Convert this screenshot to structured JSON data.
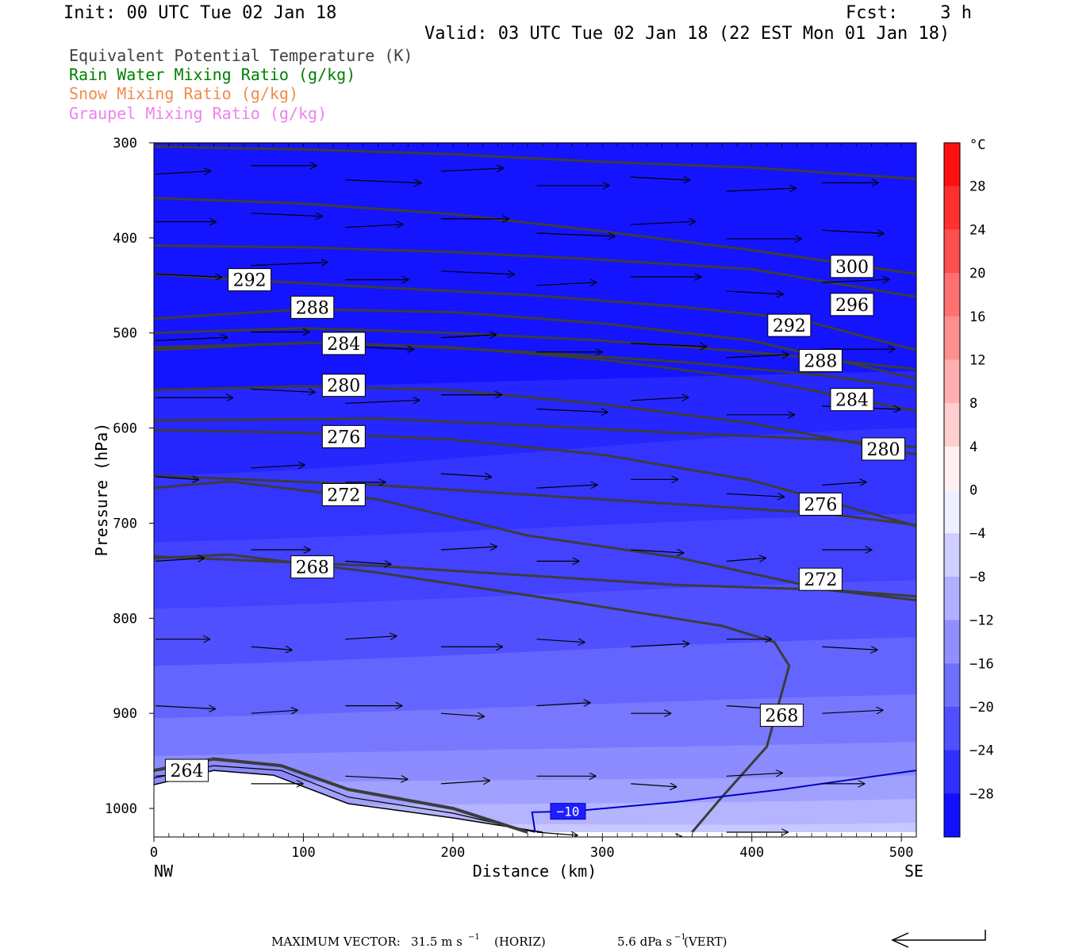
{
  "header": {
    "init": "Init: 00 UTC Tue 02 Jan 18",
    "fcst": "Fcst:    3 h",
    "valid": "Valid: 03 UTC Tue 02 Jan 18 (22 EST Mon 01 Jan 18)"
  },
  "legend": [
    {
      "label": "Equivalent Potential Temperature (K)",
      "color": "#404040"
    },
    {
      "label": "Rain Water Mixing Ratio (g/kg)",
      "color": "#008000"
    },
    {
      "label": "Snow Mixing Ratio (g/kg)",
      "color": "#f08c4c"
    },
    {
      "label": "Graupel Mixing Ratio (g/kg)",
      "color": "#ee82ee"
    }
  ],
  "chart_data": {
    "type": "heatmap",
    "title": "",
    "xlabel": "Distance (km)",
    "ylabel": "Pressure (hPa)",
    "xlim": [
      0,
      510
    ],
    "ylim": [
      1030,
      300
    ],
    "x_ticks": [
      "0",
      "100",
      "200",
      "300",
      "400",
      "500"
    ],
    "y_ticks": [
      "300",
      "400",
      "500",
      "600",
      "700",
      "800",
      "900",
      "1000"
    ],
    "x_end_labels": {
      "left": "NW",
      "right": "SE"
    },
    "colorbar": {
      "unit": "°C",
      "tick_labels": [
        "28",
        "24",
        "20",
        "16",
        "12",
        "8",
        "4",
        "0",
        "−4",
        "−8",
        "−12",
        "−16",
        "−20",
        "−24",
        "−28"
      ],
      "range": [
        -32,
        32
      ],
      "step": 4
    },
    "theta_e_contours": [
      {
        "label": "300",
        "label_x": 467,
        "label_p": 430,
        "points": [
          [
            0,
            304
          ],
          [
            100,
            307
          ],
          [
            200,
            312
          ],
          [
            300,
            320
          ],
          [
            400,
            326
          ],
          [
            510,
            338
          ]
        ]
      },
      {
        "label": "296",
        "label_x": 467,
        "label_p": 470,
        "points": [
          [
            0,
            358
          ],
          [
            100,
            364
          ],
          [
            200,
            375
          ],
          [
            300,
            393
          ],
          [
            400,
            413
          ],
          [
            510,
            438
          ]
        ]
      },
      {
        "label": "292",
        "label_x": 64,
        "label_p": 444,
        "points": [
          [
            0,
            438
          ],
          [
            60,
            444
          ],
          [
            150,
            452
          ],
          [
            250,
            460
          ],
          [
            350,
            472
          ],
          [
            430,
            485
          ],
          [
            510,
            518
          ]
        ]
      },
      {
        "label": "292",
        "label_x": 425,
        "label_p": 492,
        "points": [
          [
            0,
            408
          ],
          [
            100,
            410
          ],
          [
            200,
            415
          ],
          [
            300,
            423
          ],
          [
            400,
            433
          ],
          [
            510,
            462
          ]
        ]
      },
      {
        "label": "288",
        "label_x": 106,
        "label_p": 473,
        "points": [
          [
            0,
            485
          ],
          [
            100,
            475
          ],
          [
            200,
            478
          ],
          [
            300,
            490
          ],
          [
            400,
            508
          ],
          [
            510,
            548
          ]
        ]
      },
      {
        "label": "288",
        "label_x": 446,
        "label_p": 529,
        "points": [
          [
            0,
            500
          ],
          [
            100,
            495
          ],
          [
            200,
            500
          ],
          [
            300,
            508
          ],
          [
            400,
            520
          ],
          [
            510,
            538
          ]
        ]
      },
      {
        "label": "284",
        "label_x": 127,
        "label_p": 511,
        "points": [
          [
            0,
            518
          ],
          [
            100,
            510
          ],
          [
            200,
            515
          ],
          [
            300,
            528
          ],
          [
            400,
            548
          ],
          [
            510,
            582
          ]
        ]
      },
      {
        "label": "284",
        "label_x": 467,
        "label_p": 570,
        "points": [
          [
            0,
            515
          ],
          [
            120,
            510
          ],
          [
            250,
            520
          ],
          [
            350,
            530
          ],
          [
            450,
            545
          ],
          [
            510,
            558
          ]
        ]
      },
      {
        "label": "280",
        "label_x": 127,
        "label_p": 555,
        "points": [
          [
            0,
            560
          ],
          [
            100,
            556
          ],
          [
            200,
            560
          ],
          [
            300,
            575
          ],
          [
            400,
            595
          ],
          [
            510,
            628
          ]
        ]
      },
      {
        "label": "280",
        "label_x": 488,
        "label_p": 622,
        "points": [
          [
            0,
            592
          ],
          [
            150,
            590
          ],
          [
            250,
            597
          ],
          [
            350,
            605
          ],
          [
            450,
            612
          ],
          [
            510,
            620
          ]
        ]
      },
      {
        "label": "276",
        "label_x": 127,
        "label_p": 609,
        "points": [
          [
            0,
            602
          ],
          [
            100,
            605
          ],
          [
            200,
            612
          ],
          [
            300,
            628
          ],
          [
            400,
            655
          ],
          [
            510,
            703
          ]
        ]
      },
      {
        "label": "276",
        "label_x": 446,
        "label_p": 680,
        "points": [
          [
            0,
            650
          ],
          [
            150,
            660
          ],
          [
            250,
            670
          ],
          [
            350,
            680
          ],
          [
            450,
            690
          ],
          [
            510,
            702
          ]
        ]
      },
      {
        "label": "272",
        "label_x": 127,
        "label_p": 670,
        "points": [
          [
            0,
            663
          ],
          [
            50,
            656
          ],
          [
            150,
            675
          ],
          [
            250,
            713
          ],
          [
            350,
            736
          ],
          [
            450,
            770
          ],
          [
            510,
            781
          ]
        ]
      },
      {
        "label": "272",
        "label_x": 446,
        "label_p": 759,
        "points": [
          [
            0,
            735
          ],
          [
            150,
            745
          ],
          [
            250,
            755
          ],
          [
            350,
            765
          ],
          [
            450,
            770
          ],
          [
            510,
            777
          ]
        ]
      },
      {
        "label": "268",
        "label_x": 106,
        "label_p": 746,
        "points": [
          [
            0,
            737
          ],
          [
            50,
            733
          ],
          [
            150,
            752
          ],
          [
            280,
            783
          ],
          [
            380,
            808
          ],
          [
            415,
            825
          ],
          [
            425,
            850
          ],
          [
            410,
            935
          ],
          [
            380,
            988
          ],
          [
            360,
            1025
          ]
        ]
      },
      {
        "label": "268",
        "label_x": 420,
        "label_p": 902,
        "points": [
          [
            0,
            737
          ],
          [
            50,
            733
          ],
          [
            150,
            752
          ],
          [
            280,
            783
          ],
          [
            380,
            808
          ],
          [
            415,
            825
          ],
          [
            425,
            850
          ],
          [
            410,
            935
          ],
          [
            380,
            988
          ],
          [
            360,
            1025
          ]
        ]
      },
      {
        "label": "264",
        "label_x": 22,
        "label_p": 960,
        "points": [
          [
            0,
            960
          ],
          [
            40,
            948
          ],
          [
            85,
            955
          ],
          [
            130,
            980
          ],
          [
            200,
            1000
          ],
          [
            250,
            1025
          ]
        ]
      }
    ],
    "temperature_contour": {
      "label": "−10",
      "color": "#0000cd",
      "points": [
        [
          255,
          1025
        ],
        [
          253,
          1004
        ],
        [
          280,
          1003
        ],
        [
          350,
          993
        ],
        [
          420,
          980
        ],
        [
          510,
          960
        ]
      ]
    },
    "terrain": [
      [
        0,
        975
      ],
      [
        40,
        960
      ],
      [
        80,
        965
      ],
      [
        130,
        995
      ],
      [
        200,
        1010
      ],
      [
        260,
        1025
      ],
      [
        510,
        1025
      ]
    ],
    "wind_arrow_note": "horizontal wind vectors, mostly eastward",
    "footer": {
      "maximum_vector_label": "MAXIMUM VECTOR:",
      "horiz": "31.5 m s",
      "horiz_suffix": " (HORIZ)",
      "vert": "5.6 dPa s",
      "vert_suffix": " (VERT)",
      "exp": "−1"
    }
  }
}
